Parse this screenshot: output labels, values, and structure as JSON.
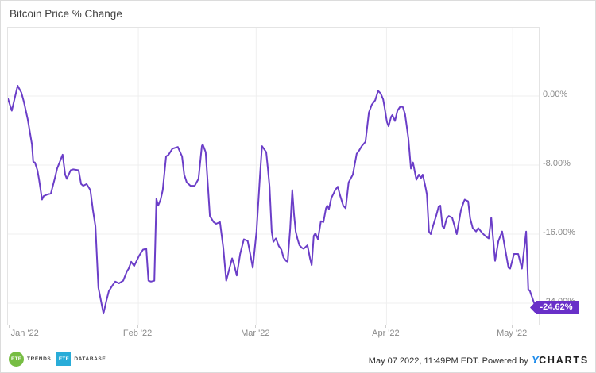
{
  "title": "Bitcoin Price % Change",
  "last_value_label": "-24.62%",
  "footer": {
    "timestamp": "May 07 2022, 11:49PM EDT. Powered by",
    "brand_y": "Y",
    "brand_rest": "CHARTS"
  },
  "logos": {
    "trends_abbr": "ETF",
    "trends_label": "TRENDS",
    "database_abbr": "ETF",
    "database_label": "DATABASE"
  },
  "colors": {
    "line": "#6B3EC8",
    "badge": "#6930C8",
    "grid": "#efefef",
    "plot_border": "#e4e4e4",
    "axis_text": "#8a8a8a",
    "brand_blue": "#1f8ceb",
    "trends_green": "#77bd43",
    "database_teal": "#29acd8"
  },
  "chart_data": {
    "type": "line",
    "title": "Bitcoin Price % Change",
    "x_unit": "days since Jan 1 2022",
    "x_range": [
      0,
      126.2
    ],
    "ylabel": "% change",
    "grid": true,
    "legend": "none",
    "last_value": -24.62,
    "y_ticks": [
      {
        "label": "0.00%",
        "value": 0
      },
      {
        "label": "-8.00%",
        "value": -8
      },
      {
        "label": "-16.00%",
        "value": -16
      },
      {
        "label": "-24.00%",
        "value": -24
      }
    ],
    "x_ticks": [
      {
        "label": "Jan '22",
        "day": 4.2
      },
      {
        "label": "Feb '22",
        "day": 31
      },
      {
        "label": "Mar '22",
        "day": 59
      },
      {
        "label": "Apr '22",
        "day": 90
      },
      {
        "label": "May '22",
        "day": 120
      }
    ],
    "x_gridline_days": [
      31,
      59,
      90,
      120
    ],
    "x_tick_mark_days": [
      0.4,
      31,
      59,
      90,
      120
    ],
    "series": [
      {
        "name": "Bitcoin Price % Change",
        "points": [
          [
            0,
            -0.3
          ],
          [
            0.9,
            -1.7
          ],
          [
            2.3,
            1.2
          ],
          [
            3.2,
            0.4
          ],
          [
            3.8,
            -0.7
          ],
          [
            4.7,
            -2.7
          ],
          [
            5.7,
            -5.6
          ],
          [
            6,
            -7.6
          ],
          [
            6.4,
            -7.7
          ],
          [
            7,
            -8.6
          ],
          [
            7.4,
            -9.7
          ],
          [
            8.1,
            -12
          ],
          [
            8.5,
            -11.6
          ],
          [
            9.4,
            -11.4
          ],
          [
            10.2,
            -11.3
          ],
          [
            11.1,
            -9.6
          ],
          [
            11.7,
            -8.4
          ],
          [
            13,
            -6.8
          ],
          [
            13.6,
            -9.1
          ],
          [
            14,
            -9.6
          ],
          [
            14.9,
            -8.6
          ],
          [
            15.5,
            -8.5
          ],
          [
            16.8,
            -8.6
          ],
          [
            17.4,
            -10.2
          ],
          [
            17.9,
            -10.4
          ],
          [
            18.7,
            -10.2
          ],
          [
            19.6,
            -10.9
          ],
          [
            20.2,
            -13.2
          ],
          [
            20.8,
            -15.1
          ],
          [
            21.5,
            -22.2
          ],
          [
            22.7,
            -25.2
          ],
          [
            23.4,
            -23.7
          ],
          [
            24,
            -22.6
          ],
          [
            24.9,
            -21.9
          ],
          [
            25.5,
            -21.5
          ],
          [
            26.4,
            -21.7
          ],
          [
            27.4,
            -21.4
          ],
          [
            28.3,
            -20.3
          ],
          [
            28.7,
            -20
          ],
          [
            29.3,
            -19.2
          ],
          [
            30,
            -19.7
          ],
          [
            31.2,
            -18.5
          ],
          [
            32.1,
            -17.8
          ],
          [
            32.9,
            -17.7
          ],
          [
            33.4,
            -21.4
          ],
          [
            34,
            -21.5
          ],
          [
            34.8,
            -21.4
          ],
          [
            35.3,
            -11.9
          ],
          [
            35.7,
            -12.7
          ],
          [
            36.3,
            -12
          ],
          [
            36.8,
            -10.9
          ],
          [
            37.6,
            -7
          ],
          [
            38.2,
            -6.8
          ],
          [
            39.1,
            -6.1
          ],
          [
            40.4,
            -5.9
          ],
          [
            41.4,
            -7
          ],
          [
            41.9,
            -9.1
          ],
          [
            42.5,
            -10
          ],
          [
            43.4,
            -10.4
          ],
          [
            44.4,
            -10.4
          ],
          [
            45.3,
            -9.6
          ],
          [
            46.1,
            -5.8
          ],
          [
            46.3,
            -5.6
          ],
          [
            47,
            -6.5
          ],
          [
            47.6,
            -10.9
          ],
          [
            48,
            -13.9
          ],
          [
            48.9,
            -14.6
          ],
          [
            49.5,
            -14.8
          ],
          [
            50.4,
            -14.6
          ],
          [
            51.2,
            -17.6
          ],
          [
            51.9,
            -21.4
          ],
          [
            52.7,
            -19.9
          ],
          [
            53.3,
            -18.8
          ],
          [
            53.8,
            -19.6
          ],
          [
            54.4,
            -20.8
          ],
          [
            55.2,
            -18.3
          ],
          [
            56.1,
            -16.6
          ],
          [
            57,
            -16.8
          ],
          [
            57.6,
            -18.3
          ],
          [
            58.2,
            -19.9
          ],
          [
            59.1,
            -15.7
          ],
          [
            59.9,
            -9.3
          ],
          [
            60.4,
            -5.8
          ],
          [
            61.4,
            -6.5
          ],
          [
            61.8,
            -8.4
          ],
          [
            62.2,
            -10.5
          ],
          [
            62.7,
            -15.7
          ],
          [
            63.1,
            -16.9
          ],
          [
            63.7,
            -16.5
          ],
          [
            64.4,
            -17.4
          ],
          [
            65,
            -17.8
          ],
          [
            65.5,
            -18.7
          ],
          [
            66.1,
            -19.1
          ],
          [
            66.5,
            -19.2
          ],
          [
            67.1,
            -15.3
          ],
          [
            67.6,
            -10.9
          ],
          [
            68,
            -13.6
          ],
          [
            68.4,
            -15.7
          ],
          [
            68.8,
            -16.5
          ],
          [
            69.3,
            -17.3
          ],
          [
            69.9,
            -17.6
          ],
          [
            70.3,
            -17.7
          ],
          [
            71.2,
            -17.3
          ],
          [
            71.8,
            -18.8
          ],
          [
            72.2,
            -19.6
          ],
          [
            72.7,
            -16.2
          ],
          [
            73.1,
            -15.9
          ],
          [
            73.7,
            -16.6
          ],
          [
            74.4,
            -14.5
          ],
          [
            75,
            -14.6
          ],
          [
            75.6,
            -13
          ],
          [
            75.9,
            -12.7
          ],
          [
            76.3,
            -13.1
          ],
          [
            76.9,
            -11.8
          ],
          [
            77.4,
            -11.3
          ],
          [
            77.8,
            -10.9
          ],
          [
            78.4,
            -10.5
          ],
          [
            79,
            -11.6
          ],
          [
            79.7,
            -12.7
          ],
          [
            80.3,
            -13
          ],
          [
            81,
            -10
          ],
          [
            82,
            -9.1
          ],
          [
            82.9,
            -6.7
          ],
          [
            83.5,
            -6.3
          ],
          [
            84.1,
            -5.8
          ],
          [
            85,
            -5.3
          ],
          [
            85.8,
            -1.9
          ],
          [
            86.5,
            -1
          ],
          [
            87.3,
            -0.5
          ],
          [
            88,
            0.6
          ],
          [
            88.6,
            0.3
          ],
          [
            89.2,
            -0.4
          ],
          [
            89.5,
            -1.2
          ],
          [
            90.1,
            -3
          ],
          [
            90.5,
            -3.5
          ],
          [
            91.1,
            -2.4
          ],
          [
            91.4,
            -2.2
          ],
          [
            92,
            -2.9
          ],
          [
            92.6,
            -1.7
          ],
          [
            93.3,
            -1.2
          ],
          [
            93.9,
            -1.3
          ],
          [
            94.4,
            -2.1
          ],
          [
            95.2,
            -4.9
          ],
          [
            95.8,
            -8.4
          ],
          [
            96.3,
            -7.7
          ],
          [
            97.1,
            -9.7
          ],
          [
            97.7,
            -9.1
          ],
          [
            98.2,
            -9.5
          ],
          [
            98.6,
            -9.1
          ],
          [
            99.2,
            -10.4
          ],
          [
            99.6,
            -11.4
          ],
          [
            100.1,
            -15.7
          ],
          [
            100.5,
            -16
          ],
          [
            101.1,
            -15
          ],
          [
            101.8,
            -13.9
          ],
          [
            102.4,
            -12.8
          ],
          [
            102.8,
            -12.7
          ],
          [
            103.3,
            -15.1
          ],
          [
            103.7,
            -15.3
          ],
          [
            104.3,
            -14.2
          ],
          [
            104.8,
            -13.9
          ],
          [
            105.6,
            -14.1
          ],
          [
            106.2,
            -15.1
          ],
          [
            106.7,
            -16
          ],
          [
            107.7,
            -13.2
          ],
          [
            108.4,
            -12.2
          ],
          [
            108.6,
            -12
          ],
          [
            109.4,
            -12.2
          ],
          [
            109.9,
            -14.2
          ],
          [
            110.5,
            -15.3
          ],
          [
            111.3,
            -15.7
          ],
          [
            111.8,
            -15.3
          ],
          [
            112.8,
            -15.9
          ],
          [
            113.7,
            -16.3
          ],
          [
            114.3,
            -16.5
          ],
          [
            114.9,
            -14.1
          ],
          [
            115.8,
            -19.1
          ],
          [
            116.6,
            -16.8
          ],
          [
            117.5,
            -15.7
          ],
          [
            118.3,
            -18
          ],
          [
            119,
            -19.9
          ],
          [
            119.4,
            -20
          ],
          [
            120.3,
            -18.3
          ],
          [
            121.3,
            -18.3
          ],
          [
            122.2,
            -20
          ],
          [
            123.2,
            -15.7
          ],
          [
            123.7,
            -22.4
          ],
          [
            124.1,
            -22.6
          ],
          [
            125.1,
            -24
          ],
          [
            126,
            -24.62
          ]
        ]
      }
    ]
  }
}
